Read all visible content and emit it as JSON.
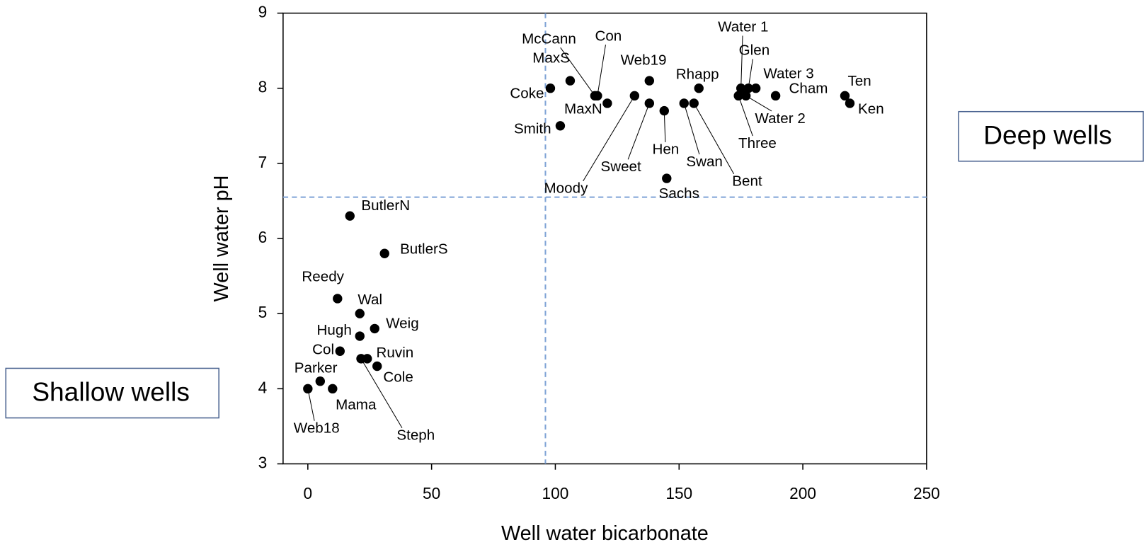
{
  "chart_data": {
    "type": "scatter",
    "xlabel": "Well water bicarbonate",
    "ylabel": "Well water pH",
    "xlim": [
      -10,
      250
    ],
    "ylim": [
      3,
      9
    ],
    "xticks": [
      0,
      50,
      100,
      150,
      200,
      250
    ],
    "yticks": [
      3,
      4,
      5,
      6,
      7,
      8,
      9
    ],
    "color": "#000000",
    "reference_lines": {
      "x": 96,
      "y": 6.55,
      "color": "#7fa3d6"
    },
    "annotations": [
      "Deep wells",
      "Shallow wells"
    ],
    "labels": [
      "Coke",
      "MaxS",
      "McCann",
      "Con",
      "MaxN",
      "Smith",
      "Web19",
      "Moody",
      "Sweet",
      "Hen",
      "Sachs",
      "Rhapp",
      "Swan",
      "Bent",
      "Water 1",
      "Glen",
      "Water 3",
      "Water 2",
      "Three",
      "Cham",
      "Ten",
      "Ken",
      "ButlerN",
      "ButlerS",
      "Reedy",
      "Wal",
      "Weig",
      "Hugh",
      "Col",
      "Ruvin",
      "Steph",
      "Cole",
      "Parker",
      "Mama",
      "Web18"
    ],
    "x": [
      98,
      106,
      116,
      117,
      121,
      102,
      138,
      132,
      138,
      144,
      145,
      158,
      152,
      156,
      175,
      178,
      181,
      177,
      174,
      189,
      217,
      219,
      17,
      31,
      12,
      21,
      27,
      21,
      13,
      24,
      21.5,
      28,
      5,
      10,
      0
    ],
    "values": [
      8.0,
      8.1,
      7.9,
      7.9,
      7.8,
      7.5,
      8.1,
      7.9,
      7.8,
      7.7,
      6.8,
      8.0,
      7.8,
      7.8,
      8.0,
      8.0,
      8.0,
      7.9,
      7.9,
      7.9,
      7.9,
      7.8,
      6.3,
      5.8,
      5.2,
      5.0,
      4.8,
      4.7,
      4.5,
      4.4,
      4.4,
      4.3,
      4.1,
      4.0,
      4.0
    ]
  }
}
